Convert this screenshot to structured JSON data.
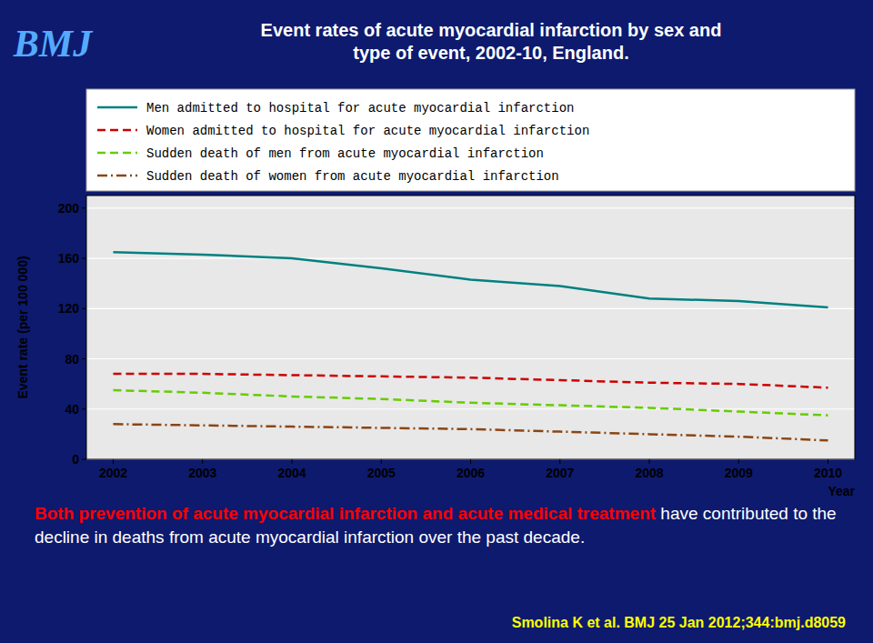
{
  "chart_data": {
    "type": "line",
    "title": "Event rates of acute myocardial infarction by sex and\ntype of event, 2002-10, England.",
    "logo": "BMJ",
    "x_label": "Year",
    "y_label": "Event rate (per 100 000)",
    "x": [
      2002,
      2003,
      2004,
      2005,
      2006,
      2007,
      2008,
      2009,
      2010
    ],
    "series": [
      {
        "name": "Men admitted to hospital for acute myocardial infarction",
        "color": "#008080",
        "line_style": "solid",
        "values": [
          165,
          163,
          160,
          152,
          143,
          138,
          128,
          126,
          121
        ]
      },
      {
        "name": "Women admitted to hospital for acute myocardial infarction",
        "color": "#cc0000",
        "line_style": "dashed",
        "values": [
          68,
          68,
          67,
          66,
          65,
          63,
          61,
          60,
          57
        ]
      },
      {
        "name": "Sudden death of men from acute myocardial infarction",
        "color": "#66cc00",
        "line_style": "dashed",
        "values": [
          55,
          53,
          50,
          48,
          45,
          43,
          41,
          38,
          35
        ]
      },
      {
        "name": "Sudden death of women from acute myocardial infarction",
        "color": "#8B4513",
        "line_style": "dashdot",
        "values": [
          28,
          27,
          26,
          25,
          24,
          22,
          20,
          18,
          15
        ]
      }
    ],
    "xlim": [
      2001.7,
      2010.3
    ],
    "xticks": [
      2002,
      2003,
      2004,
      2005,
      2006,
      2007,
      2008,
      2009,
      2010
    ],
    "ylim": [
      0,
      210
    ],
    "yticks": [
      0,
      40,
      80,
      120,
      160,
      200
    ],
    "grid": true,
    "legend": "top",
    "annotations": [
      {
        "text": "Both prevention of acute myocardial infarction and acute medical treatment",
        "color": "#ff0000"
      },
      {
        "text": "have contributed to the decline in deaths from acute myocardial infarction over the past decade.",
        "color": "#ffffff"
      }
    ],
    "source": "Smolina K et al. BMJ 25 Jan 2012;344:bmj.d8059"
  }
}
